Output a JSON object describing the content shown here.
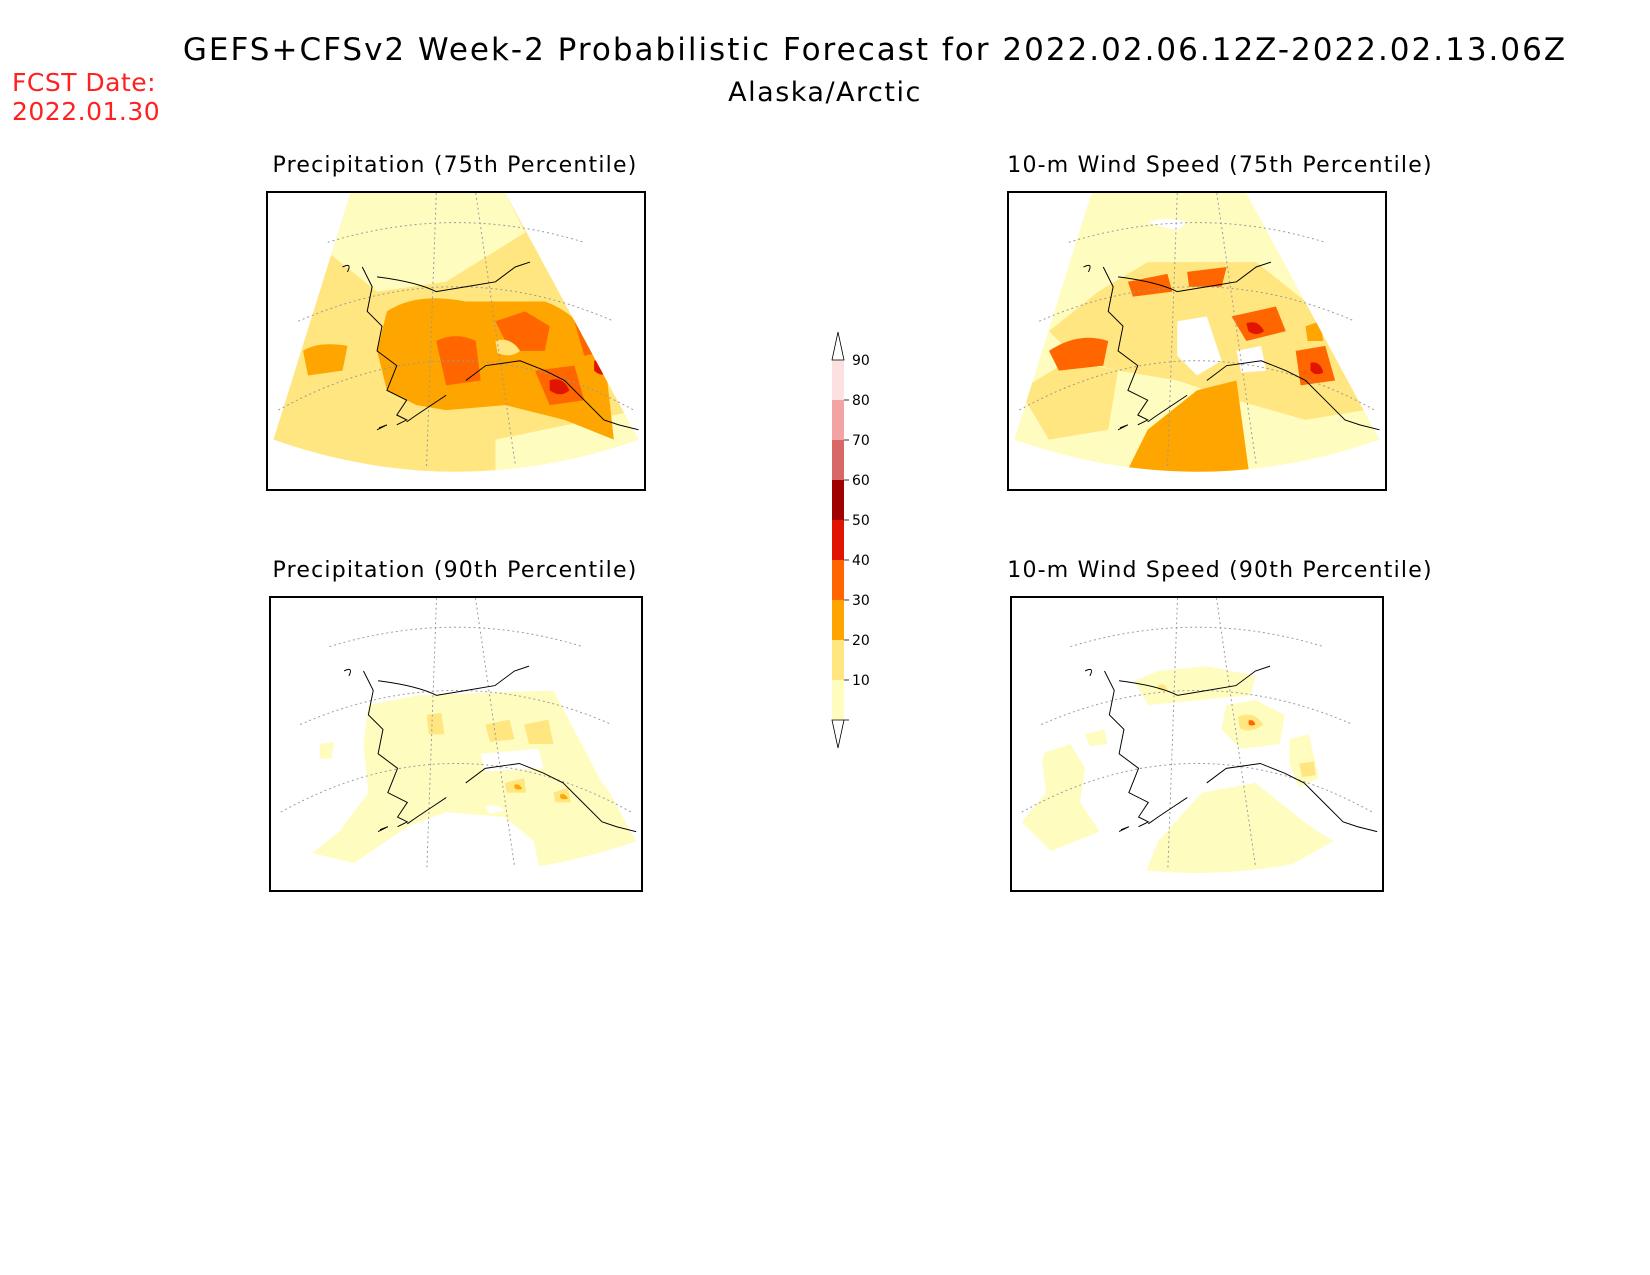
{
  "header": {
    "title": "GEFS+CFSv2 Week-2 Probabilistic Forecast for 2022.02.06.12Z-2022.02.13.06Z",
    "subtitle": "Alaska/Arctic",
    "fcst_label": "FCST Date:",
    "fcst_value": "2022.01.30"
  },
  "panels": [
    {
      "id": "precip-75",
      "title": "Precipitation (75th Percentile)",
      "variable": "precipitation",
      "percentile": "75th",
      "dominant_probability": "20-40%"
    },
    {
      "id": "wind-75",
      "title": "10-m Wind Speed (75th Percentile)",
      "variable": "10-m wind speed",
      "percentile": "75th",
      "dominant_probability": "10-30%"
    },
    {
      "id": "precip-90",
      "title": "Precipitation (90th Percentile)",
      "variable": "precipitation",
      "percentile": "90th",
      "dominant_probability": "10-20%"
    },
    {
      "id": "wind-90",
      "title": "10-m Wind Speed (90th Percentile)",
      "variable": "10-m wind speed",
      "percentile": "90th",
      "dominant_probability": "<10-20%"
    }
  ],
  "legend": {
    "levels": [
      "10",
      "20",
      "30",
      "40",
      "50",
      "60",
      "70",
      "80",
      "90"
    ],
    "colors": [
      "#fffcc0",
      "#ffe680",
      "#ffa500",
      "#ff6600",
      "#e01400",
      "#a00000",
      "#d86868",
      "#f2a4a4",
      "#fde0e0"
    ]
  }
}
